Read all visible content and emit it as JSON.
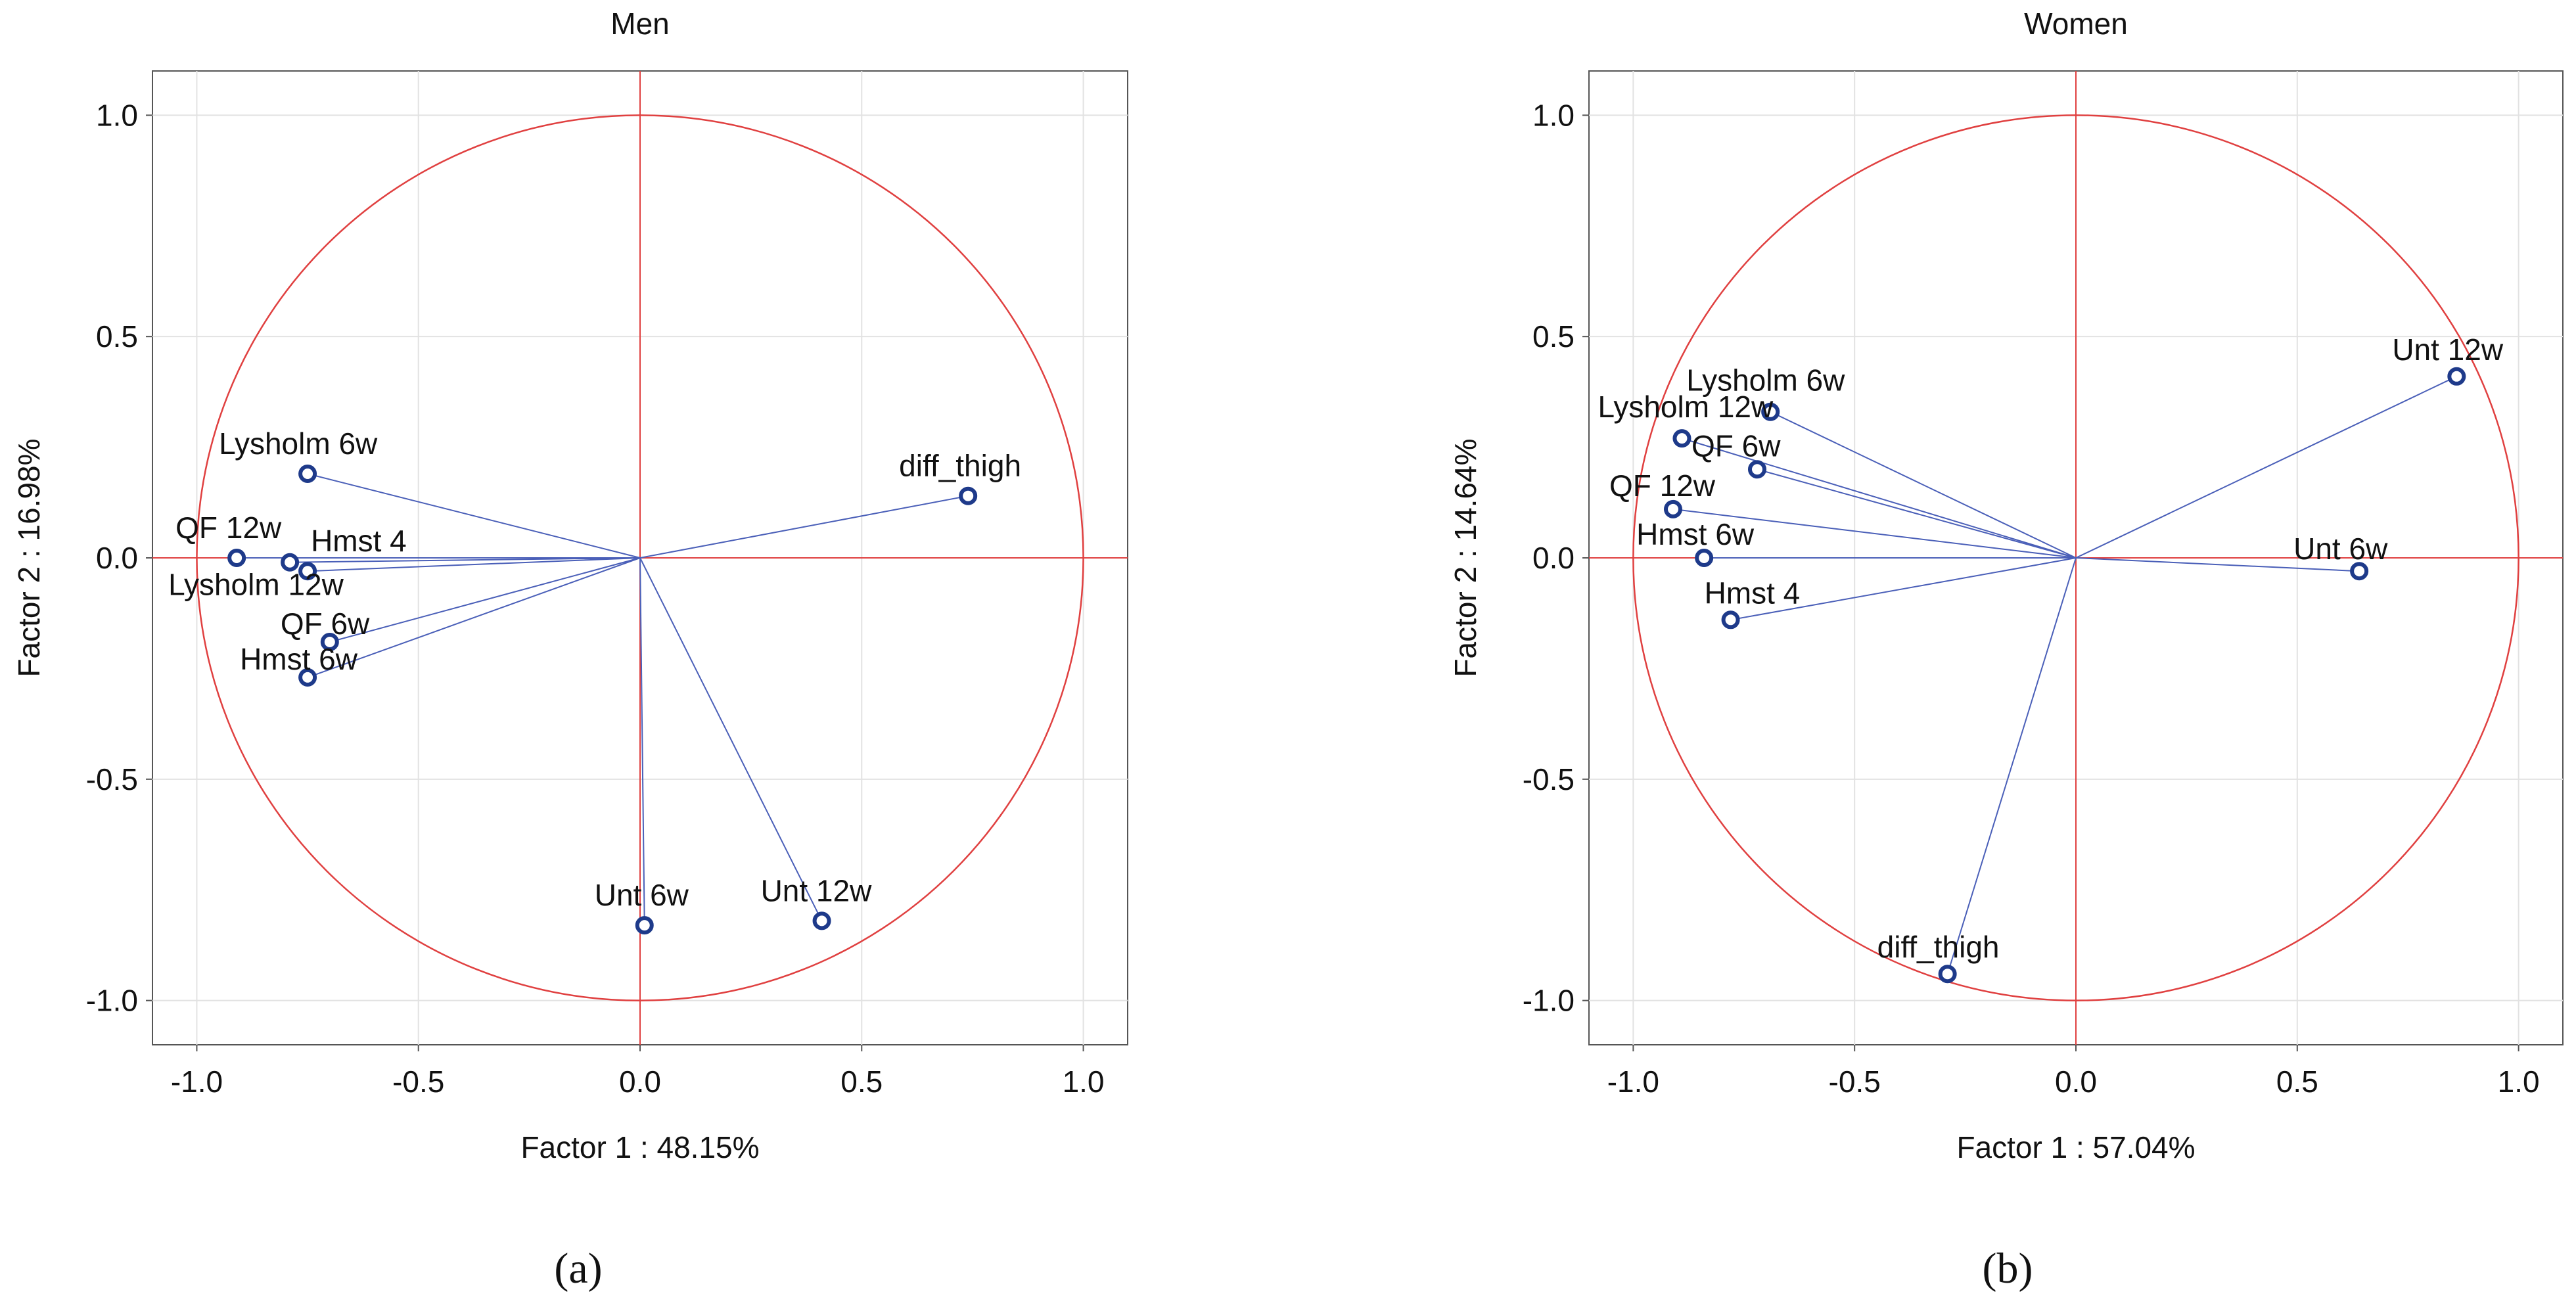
{
  "chart_data": [
    {
      "type": "scatter",
      "panel_label": "(a)",
      "title": "Men",
      "xlabel": "Factor 1 : 48.15%",
      "ylabel": "Factor 2 : 16.98%",
      "xlim": [
        -1.1,
        1.1
      ],
      "ylim": [
        -1.1,
        1.1
      ],
      "xticks": [
        "-1.0",
        "-0.5",
        "0.0",
        "0.5",
        "1.0"
      ],
      "yticks": [
        "1.0",
        "0.5",
        "0.0",
        "-0.5",
        "-1.0"
      ],
      "unit_circle": true,
      "points": [
        {
          "label": "Lysholm 6w",
          "x": -0.75,
          "y": 0.19
        },
        {
          "label": "diff_thigh",
          "x": 0.74,
          "y": 0.14
        },
        {
          "label": "QF 12w",
          "x": -0.91,
          "y": 0.0
        },
        {
          "label": "Hmst 4",
          "x": -0.75,
          "y": -0.03
        },
        {
          "label": "Lysholm 12w",
          "x": -0.79,
          "y": -0.01
        },
        {
          "label": "QF 6w",
          "x": -0.7,
          "y": -0.19
        },
        {
          "label": "Hmst 6w",
          "x": -0.75,
          "y": -0.27
        },
        {
          "label": "Unt 6w",
          "x": 0.01,
          "y": -0.83
        },
        {
          "label": "Unt 12w",
          "x": 0.41,
          "y": -0.82
        }
      ]
    },
    {
      "type": "scatter",
      "panel_label": "(b)",
      "title": "Women",
      "xlabel": "Factor 1 : 57.04%",
      "ylabel": "Factor 2 : 14.64%",
      "xlim": [
        -1.1,
        1.1
      ],
      "ylim": [
        -1.1,
        1.1
      ],
      "xticks": [
        "-1.0",
        "-0.5",
        "0.0",
        "0.5",
        "1.0"
      ],
      "yticks": [
        "1.0",
        "0.5",
        "0.0",
        "-0.5",
        "-1.0"
      ],
      "unit_circle": true,
      "points": [
        {
          "label": "Lysholm 6w",
          "x": -0.69,
          "y": 0.33
        },
        {
          "label": "Lysholm 12w",
          "x": -0.89,
          "y": 0.27
        },
        {
          "label": "QF 6w",
          "x": -0.72,
          "y": 0.2
        },
        {
          "label": "QF 12w",
          "x": -0.91,
          "y": 0.11
        },
        {
          "label": "Hmst 6w",
          "x": -0.84,
          "y": 0.0
        },
        {
          "label": "Hmst 4",
          "x": -0.78,
          "y": -0.14
        },
        {
          "label": "Unt 12w",
          "x": 0.86,
          "y": 0.41
        },
        {
          "label": "Unt 6w",
          "x": 0.64,
          "y": -0.03
        },
        {
          "label": "diff_thigh",
          "x": -0.29,
          "y": -0.94
        }
      ]
    }
  ]
}
